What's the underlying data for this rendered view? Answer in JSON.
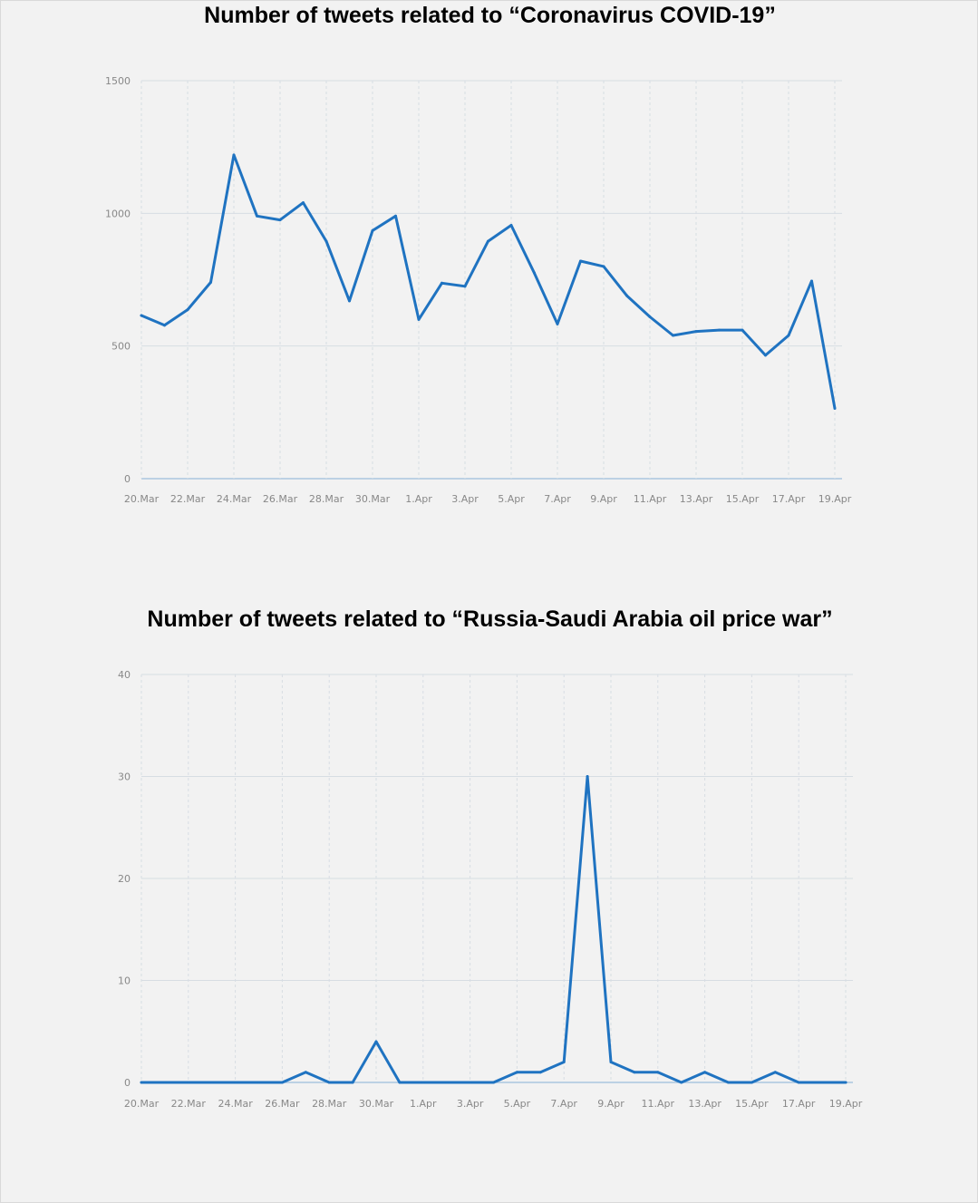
{
  "colors": {
    "line": "#1f73c1",
    "grid": "#d7dde3",
    "axis": "#a9c6e0",
    "tick_text": "#888888"
  },
  "chart_data": [
    {
      "type": "line",
      "title": "Number of tweets related to “Coronavirus COVID-19”",
      "xlabel": "",
      "ylabel": "",
      "x": [
        "20 Mar",
        "21 Mar",
        "22 Mar",
        "23 Mar",
        "24 Mar",
        "25 Mar",
        "26 Mar",
        "27 Mar",
        "28 Mar",
        "29 Mar",
        "30 Mar",
        "31 Mar",
        "1 Apr",
        "2 Apr",
        "3 Apr",
        "4 Apr",
        "5 Apr",
        "6 Apr",
        "7 Apr",
        "8 Apr",
        "9 Apr",
        "10 Apr",
        "11 Apr",
        "12 Apr",
        "13 Apr",
        "14 Apr",
        "15 Apr",
        "16 Apr",
        "17 Apr",
        "18 Apr",
        "19 Apr"
      ],
      "x_tick_labels": [
        "20.Mar",
        "22.Mar",
        "24.Mar",
        "26.Mar",
        "28.Mar",
        "30.Mar",
        "1.Apr",
        "3.Apr",
        "5.Apr",
        "7.Apr",
        "9.Apr",
        "11.Apr",
        "13.Apr",
        "15.Apr",
        "17.Apr",
        "19.Apr"
      ],
      "y_tick_labels": [
        "0",
        "500",
        "1000",
        "1500"
      ],
      "ylim": [
        0,
        1500
      ],
      "grid": true,
      "series": [
        {
          "values": [
            615,
            578,
            637,
            740,
            1220,
            990,
            975,
            1040,
            895,
            670,
            935,
            990,
            600,
            737,
            725,
            895,
            955,
            775,
            583,
            820,
            800,
            690,
            610,
            540,
            555,
            560,
            560,
            465,
            540,
            745,
            265
          ]
        }
      ]
    },
    {
      "type": "line",
      "title": "Number of tweets related to “Russia-Saudi Arabia oil price war”",
      "xlabel": "",
      "ylabel": "",
      "x": [
        "20 Mar",
        "21 Mar",
        "22 Mar",
        "23 Mar",
        "24 Mar",
        "25 Mar",
        "26 Mar",
        "27 Mar",
        "28 Mar",
        "29 Mar",
        "30 Mar",
        "31 Mar",
        "1 Apr",
        "2 Apr",
        "3 Apr",
        "4 Apr",
        "5 Apr",
        "6 Apr",
        "7 Apr",
        "8 Apr",
        "9 Apr",
        "10 Apr",
        "11 Apr",
        "12 Apr",
        "13 Apr",
        "14 Apr",
        "15 Apr",
        "16 Apr",
        "17 Apr",
        "18 Apr",
        "19 Apr"
      ],
      "x_tick_labels": [
        "20.Mar",
        "22.Mar",
        "24.Mar",
        "26.Mar",
        "28.Mar",
        "30.Mar",
        "1.Apr",
        "3.Apr",
        "5.Apr",
        "7.Apr",
        "9.Apr",
        "11.Apr",
        "13.Apr",
        "15.Apr",
        "17.Apr",
        "19.Apr"
      ],
      "y_tick_labels": [
        "0",
        "10",
        "20",
        "30",
        "40"
      ],
      "ylim": [
        0,
        40
      ],
      "grid": true,
      "series": [
        {
          "values": [
            0,
            0,
            0,
            0,
            0,
            0,
            0,
            1,
            0,
            0,
            4,
            0,
            0,
            0,
            0,
            0,
            1,
            1,
            2,
            30,
            2,
            1,
            1,
            0,
            1,
            0,
            0,
            1,
            0,
            0,
            0
          ]
        }
      ]
    }
  ]
}
